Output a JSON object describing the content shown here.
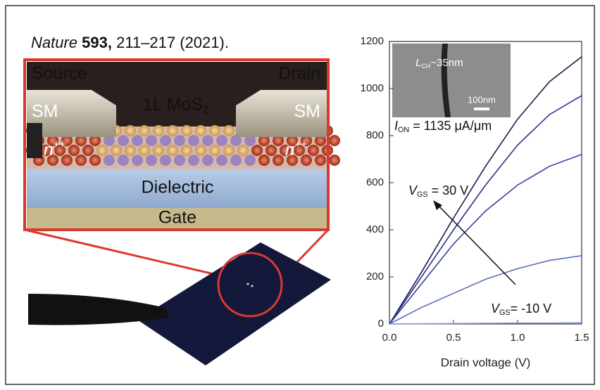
{
  "citation": {
    "journal": "Nature",
    "volume": "593,",
    "rest": " 211–217 (2021)."
  },
  "illustration": {
    "source": "Source",
    "drain": "Drain",
    "sm_left": "SM",
    "sm_right": "SM",
    "material": {
      "text": "1L MoS",
      "sub": "2"
    },
    "doping_left": {
      "text": "n",
      "sup": "++"
    },
    "doping_right": {
      "text": "n",
      "sup": "++"
    },
    "dielectric": "Dielectric",
    "gate": "Gate"
  },
  "chart_data": {
    "type": "line",
    "x": [
      0,
      0.25,
      0.5,
      0.75,
      1.0,
      1.25,
      1.5
    ],
    "series": [
      {
        "color": "#1a1a4a",
        "values": [
          0,
          220,
          450,
          670,
          870,
          1030,
          1135
        ]
      },
      {
        "color": "#2a2f8a",
        "values": [
          0,
          200,
          400,
          590,
          760,
          890,
          970
        ]
      },
      {
        "color": "#34409a",
        "values": [
          0,
          170,
          340,
          480,
          590,
          670,
          720
        ]
      },
      {
        "color": "#5a6cc0",
        "values": [
          0,
          70,
          130,
          190,
          235,
          270,
          290
        ]
      },
      {
        "color": "#8a9ad8",
        "values": [
          0,
          1,
          2,
          3,
          4,
          4,
          5
        ]
      }
    ],
    "xlim": [
      0,
      1.5
    ],
    "ylim": [
      0,
      1200
    ],
    "xticks": [
      {
        "value": 0,
        "label": "0.0"
      },
      0.5,
      {
        "value": 1,
        "label": "1.0"
      },
      1.5
    ],
    "yticks": [
      0,
      200,
      400,
      600,
      800,
      1000,
      1200
    ],
    "xlabel": "Drain voltage (V)",
    "annotations": {
      "ion": {
        "main": "I",
        "sub": "ON",
        "rest": " = 1135 μA/μm"
      },
      "vgs_high": {
        "main": "V",
        "sub": "GS",
        "rest": " = 30 V"
      },
      "vgs_low": {
        "main": "V",
        "sub": "GS",
        "rest": "= -10 V"
      },
      "lch": {
        "main": "L",
        "sub": "CH",
        "rest": "~35nm"
      },
      "scale": "100nm"
    }
  }
}
